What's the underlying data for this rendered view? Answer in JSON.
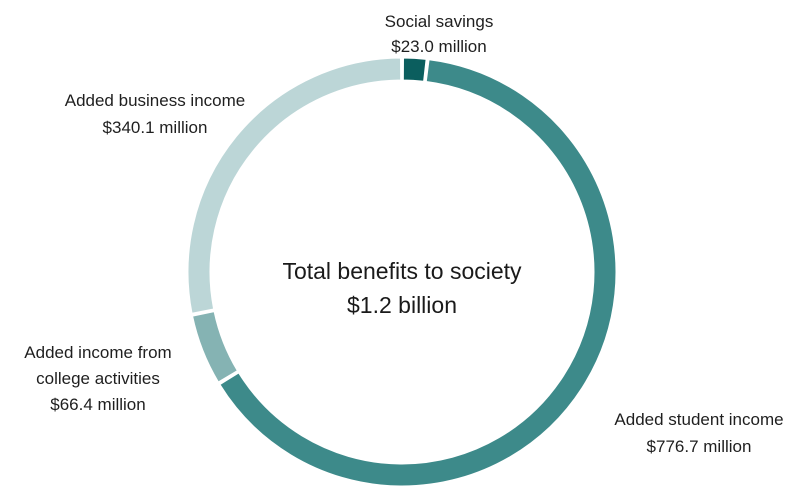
{
  "chart_data": {
    "type": "pie",
    "center_label": {
      "line1": "Total benefits to society",
      "line2": "$1.2 billion"
    },
    "slices": [
      {
        "label": "Social savings",
        "value_label": "$23.0 million",
        "value": 23.0,
        "color": "#0b5e5e"
      },
      {
        "label": "Added student income",
        "value_label": "$776.7 million",
        "value": 776.7,
        "color": "#3d8a8a"
      },
      {
        "label": "Added income from college activities",
        "label_lines": [
          "Added income from",
          "college activities"
        ],
        "value_label": "$66.4 million",
        "value": 66.4,
        "color": "#85b3b3"
      },
      {
        "label": "Added business income",
        "value_label": "$340.1 million",
        "value": 340.1,
        "color": "#bcd6d7"
      }
    ],
    "unit": "million",
    "start": "top",
    "direction": "clockwise"
  }
}
